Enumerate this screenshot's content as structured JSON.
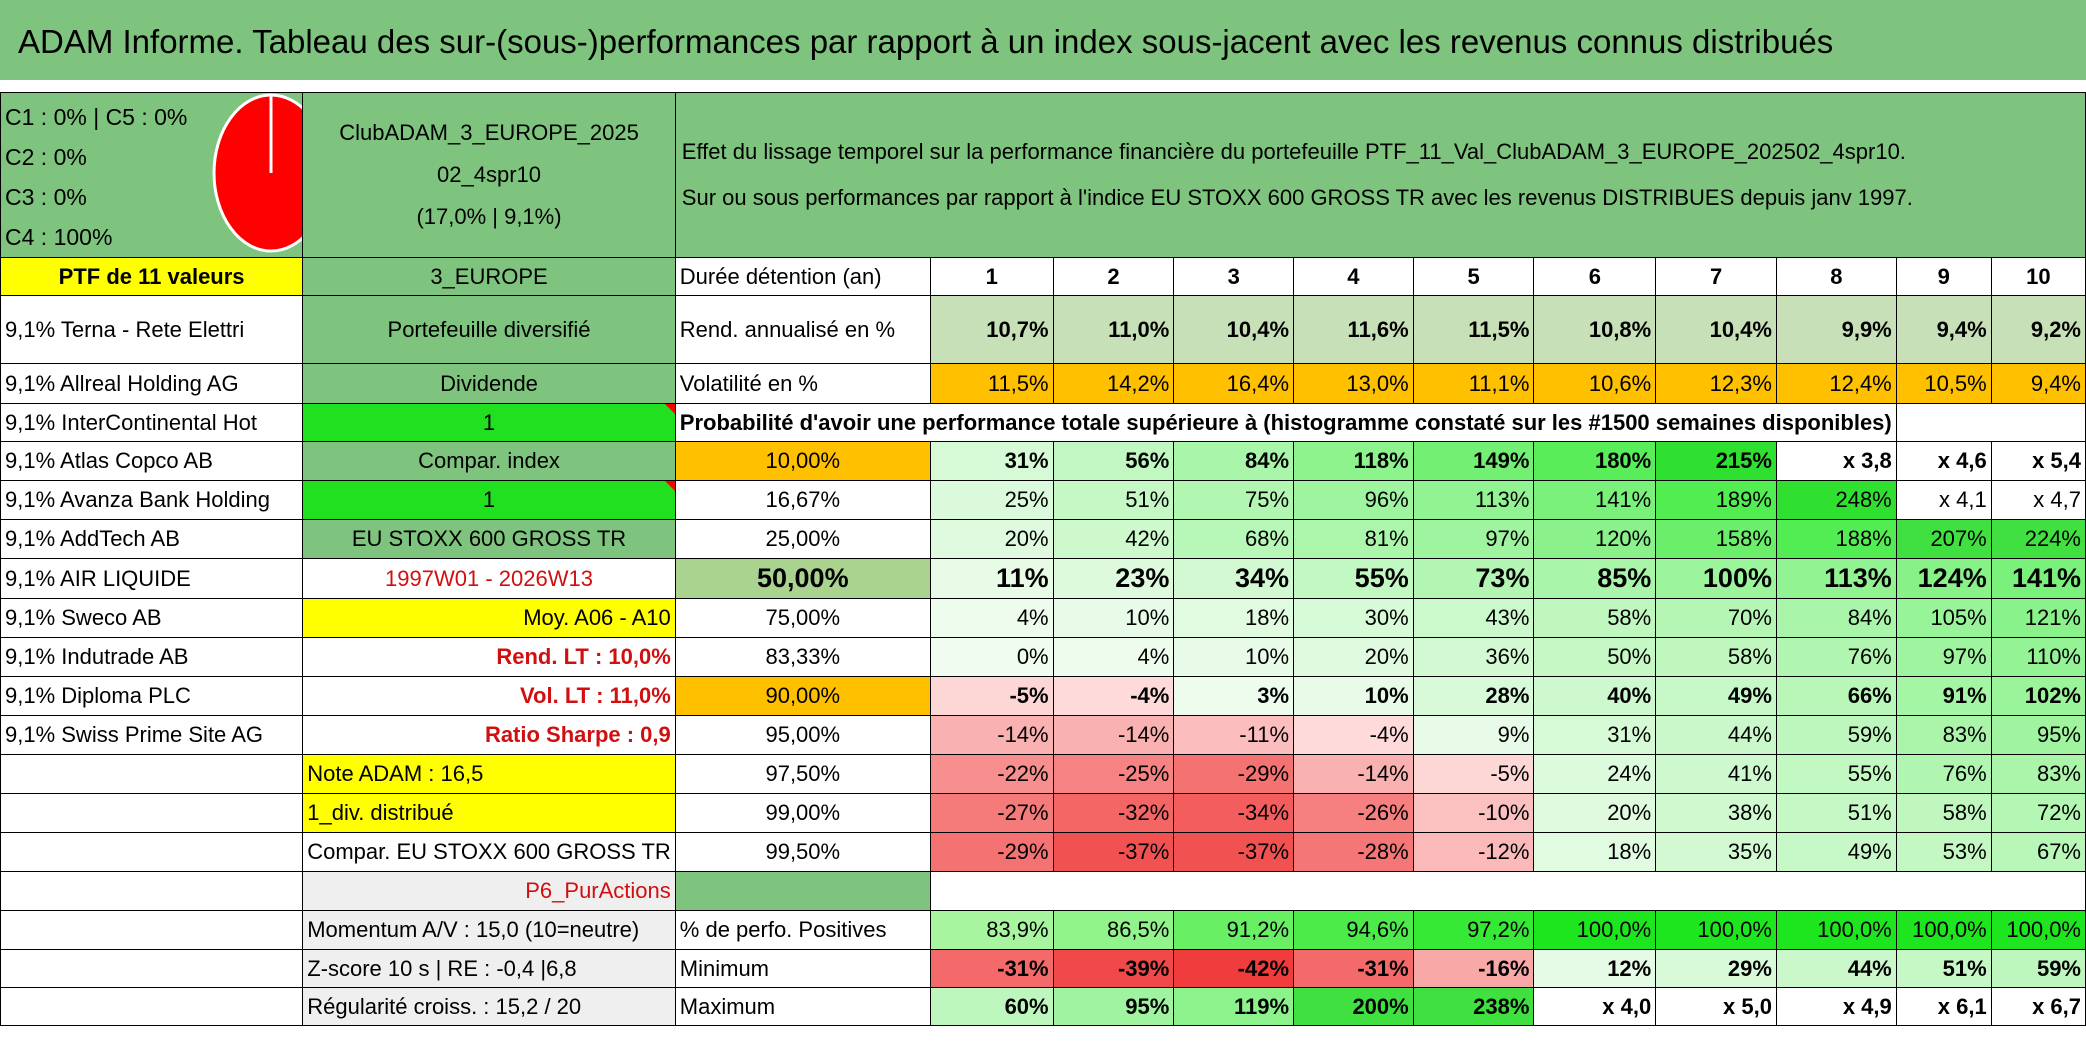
{
  "title": "ADAM Informe. Tableau des sur-(sous-)performances par rapport à un index sous-jacent avec les revenus connus distribués",
  "legend": [
    "C1 : 0% | C5 : 0%",
    "C2 : 0%",
    "C3 : 0%",
    "C4 : 100%"
  ],
  "fund": {
    "name_line1": "ClubADAM_3_EUROPE_2025",
    "name_line2": "02_4spr10",
    "perf": "(17,0% | 9,1%)"
  },
  "description": {
    "line1": "Effet du lissage temporel sur la performance financière du portefeuille PTF_11_Val_ClubADAM_3_EUROPE_202502_4spr10.",
    "line2": "Sur ou sous performances par rapport à l'indice EU STOXX 600 GROSS TR avec les revenus DISTRIBUES depuis janv 1997."
  },
  "ptf_header": "PTF de 11 valeurs",
  "holdings": [
    "9,1% Terna - Rete Elettri",
    "9,1% Allreal Holding AG",
    "9,1% InterContinental Hot",
    "9,1% Atlas Copco AB",
    "9,1% Avanza Bank Holding",
    "9,1% AddTech AB",
    "9,1% AIR LIQUIDE",
    "9,1% Sweco AB",
    "9,1% Indutrade AB",
    "9,1% Diploma PLC",
    "9,1% Swiss Prime Site AG"
  ],
  "side": {
    "code": "3_EUROPE",
    "type": "Portefeuille diversifié",
    "dividend_label": "Dividende",
    "dividend_value": "1",
    "compar_label": "Compar. index",
    "compar_value": "1",
    "index_name": "EU STOXX 600 GROSS TR",
    "period": "1997W01 - 2026W13",
    "moy": "Moy. A06 - A10",
    "rend_lt": "Rend. LT : 10,0%",
    "vol_lt": "Vol. LT : 11,0%",
    "sharpe": "Ratio Sharpe : 0,9",
    "note": "Note ADAM : 16,5",
    "div": "1_div. distribué",
    "compar_full": "Compar. EU STOXX 600 GROSS TR",
    "p6": "P6_PurActions",
    "momentum": "Momentum A/V : 15,0 (10=neutre)",
    "zscore": "Z-score 10 s | RE : -0,4 |6,8",
    "regularite": "Régularité croiss. : 15,2 / 20"
  },
  "years_label": "Durée détention (an)",
  "years": [
    "1",
    "2",
    "3",
    "4",
    "5",
    "6",
    "7",
    "8",
    "9",
    "10"
  ],
  "rend_label": "Rend. annualisé en %",
  "rend": [
    "10,7%",
    "11,0%",
    "10,4%",
    "11,6%",
    "11,5%",
    "10,8%",
    "10,4%",
    "9,9%",
    "9,4%",
    "9,2%"
  ],
  "vol_label": "Volatilité en %",
  "vol": [
    "11,5%",
    "14,2%",
    "16,4%",
    "13,0%",
    "11,1%",
    "10,6%",
    "12,3%",
    "12,4%",
    "10,5%",
    "9,4%"
  ],
  "prob_header": "Probabilité d'avoir une performance totale supérieure à (histogramme constaté sur les #1500 semaines disponibles)",
  "prob_rows": [
    {
      "p": "10,00%",
      "v": [
        "31%",
        "56%",
        "84%",
        "118%",
        "149%",
        "180%",
        "215%",
        "x 3,8",
        "x 4,6",
        "x 5,4"
      ]
    },
    {
      "p": "16,67%",
      "v": [
        "25%",
        "51%",
        "75%",
        "96%",
        "113%",
        "141%",
        "189%",
        "248%",
        "x 4,1",
        "x 4,7"
      ]
    },
    {
      "p": "25,00%",
      "v": [
        "20%",
        "42%",
        "68%",
        "81%",
        "97%",
        "120%",
        "158%",
        "188%",
        "207%",
        "224%"
      ]
    },
    {
      "p": "50,00%",
      "v": [
        "11%",
        "23%",
        "34%",
        "55%",
        "73%",
        "85%",
        "100%",
        "113%",
        "124%",
        "141%"
      ]
    },
    {
      "p": "75,00%",
      "v": [
        "4%",
        "10%",
        "18%",
        "30%",
        "43%",
        "58%",
        "70%",
        "84%",
        "105%",
        "121%"
      ]
    },
    {
      "p": "83,33%",
      "v": [
        "0%",
        "4%",
        "10%",
        "20%",
        "36%",
        "50%",
        "58%",
        "76%",
        "97%",
        "110%"
      ]
    },
    {
      "p": "90,00%",
      "v": [
        "-5%",
        "-4%",
        "3%",
        "10%",
        "28%",
        "40%",
        "49%",
        "66%",
        "91%",
        "102%"
      ]
    },
    {
      "p": "95,00%",
      "v": [
        "-14%",
        "-14%",
        "-11%",
        "-4%",
        "9%",
        "31%",
        "44%",
        "59%",
        "83%",
        "95%"
      ]
    },
    {
      "p": "97,50%",
      "v": [
        "-22%",
        "-25%",
        "-29%",
        "-14%",
        "-5%",
        "24%",
        "41%",
        "55%",
        "76%",
        "83%"
      ]
    },
    {
      "p": "99,00%",
      "v": [
        "-27%",
        "-32%",
        "-34%",
        "-26%",
        "-10%",
        "20%",
        "38%",
        "51%",
        "58%",
        "72%"
      ]
    },
    {
      "p": "99,50%",
      "v": [
        "-29%",
        "-37%",
        "-37%",
        "-28%",
        "-12%",
        "18%",
        "35%",
        "49%",
        "53%",
        "67%"
      ]
    }
  ],
  "pos_label": "% de perfo. Positives",
  "pos": [
    "83,9%",
    "86,5%",
    "91,2%",
    "94,6%",
    "97,2%",
    "100,0%",
    "100,0%",
    "100,0%",
    "100,0%",
    "100,0%"
  ],
  "min_label": "Minimum",
  "min": [
    "-31%",
    "-39%",
    "-42%",
    "-31%",
    "-16%",
    "12%",
    "29%",
    "44%",
    "51%",
    "59%"
  ],
  "max_label": "Maximum",
  "max": [
    "60%",
    "95%",
    "119%",
    "200%",
    "238%",
    "x 4,0",
    "x 5,0",
    "x 4,9",
    "x 6,1",
    "x 6,7"
  ],
  "colors": {
    "header_green": "#7ec47e",
    "yellow": "#ffff00",
    "orange": "#ffc000",
    "red_text": "#d01010",
    "pie_fill": "#ff0000"
  }
}
